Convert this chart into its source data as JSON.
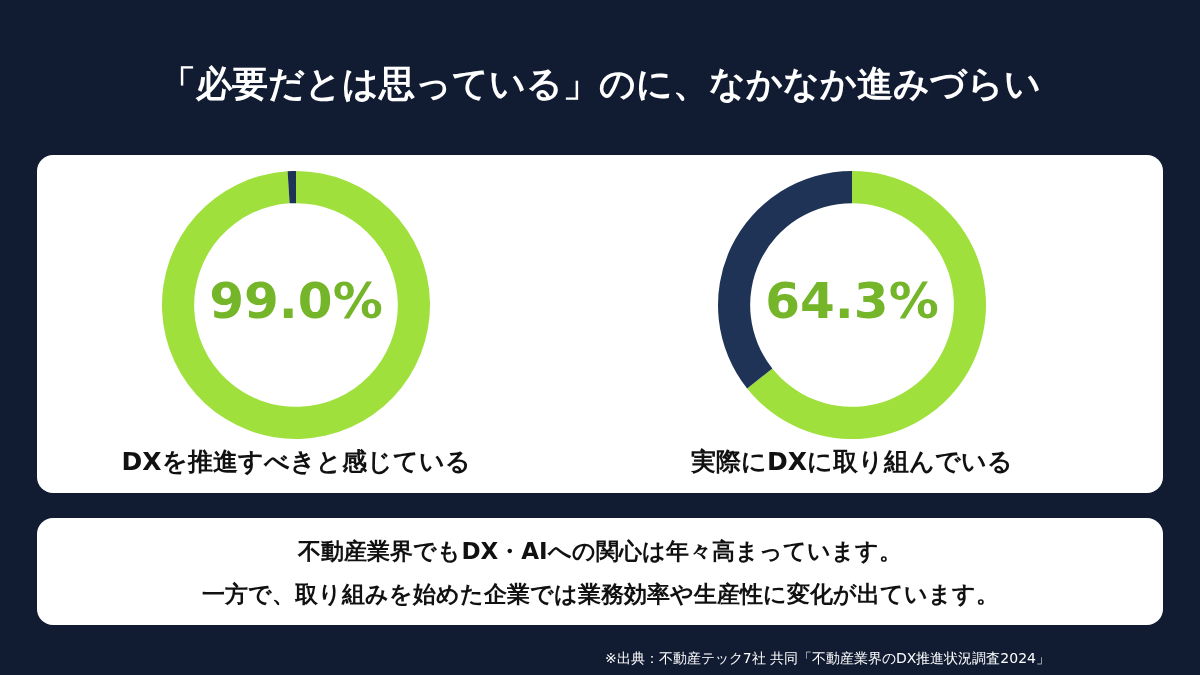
{
  "chart_data": [
    {
      "type": "donut",
      "title": "DXを推進すべきと感じている",
      "categories": [
        null,
        null
      ],
      "values": [
        99.0,
        1.0
      ],
      "colors": [
        "#9fe03c",
        "#1e3356"
      ],
      "value_labels": [
        "99.0%",
        null
      ]
    },
    {
      "type": "donut",
      "title": "実際にDXに取り組んでいる",
      "categories": [
        null,
        null
      ],
      "values": [
        64.3,
        35.7
      ],
      "colors": [
        "#9fe03c",
        "#1e3356"
      ],
      "value_labels": [
        "64.3%",
        null
      ]
    },
    {
      "type": "other",
      "title": "「必要だとは思っている」のに、なかなか進みづらい",
      "annotations": [
        "不動産業界でもDX・AIへの関心は年々高まっています。",
        "一方で、取り組みを始めた企業では業務効率や生産性に変化が出ています。",
        "※出典：不動産テック7社 共同「不動産業界のDX推進状況調査2024」"
      ]
    }
  ]
}
